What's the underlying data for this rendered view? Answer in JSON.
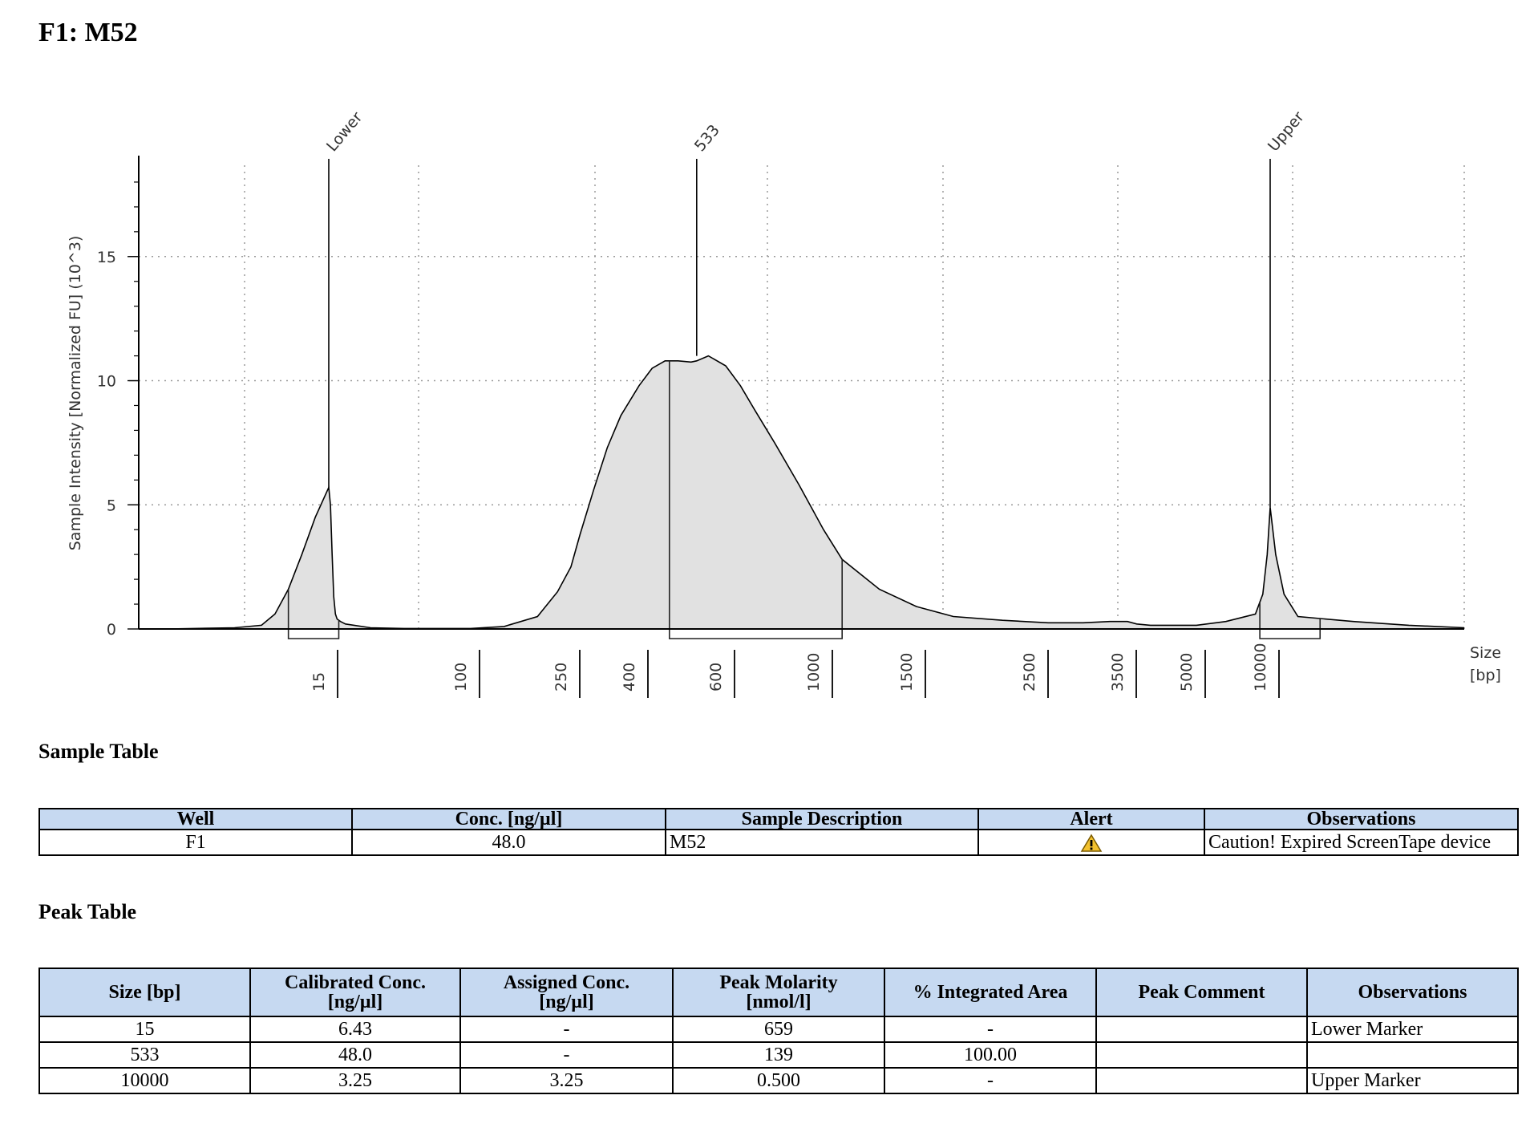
{
  "title": "F1: M52",
  "chart_data": {
    "type": "area",
    "ylabel": "Sample Intensity [Normalized FU] (10^3)",
    "xlabel_line1": "Size",
    "xlabel_line2": "[bp]",
    "ylim": [
      0,
      19
    ],
    "yticks": [
      0,
      5,
      10,
      15
    ],
    "xticks": [
      {
        "label": "15",
        "pos": 15
      },
      {
        "label": "100",
        "pos": 100
      },
      {
        "label": "250",
        "pos": 250
      },
      {
        "label": "400",
        "pos": 400
      },
      {
        "label": "600",
        "pos": 600
      },
      {
        "label": "1000",
        "pos": 1000
      },
      {
        "label": "1500",
        "pos": 1500
      },
      {
        "label": "2500",
        "pos": 2500
      },
      {
        "label": "3500",
        "pos": 3500
      },
      {
        "label": "5000",
        "pos": 5000
      },
      {
        "label": "10000",
        "pos": 10000
      }
    ],
    "trace_x": [
      1,
      3,
      5,
      8,
      10,
      11,
      12,
      13,
      14,
      15,
      16,
      17,
      18,
      19,
      20,
      22,
      25,
      40,
      60,
      100,
      150,
      200,
      230,
      250,
      270,
      300,
      330,
      360,
      400,
      430,
      460,
      490,
      520,
      533,
      560,
      600,
      660,
      720,
      800,
      900,
      1000,
      1100,
      1300,
      1500,
      1800,
      2200,
      2600,
      3000,
      3300,
      3500,
      3700,
      4000,
      5000,
      7000,
      9000,
      9500,
      9800,
      10000,
      10200,
      10500,
      11000,
      13000,
      15000,
      17000
    ],
    "trace_y": [
      0,
      0,
      0.02,
      0.05,
      0.15,
      0.6,
      1.6,
      3.0,
      4.5,
      5.7,
      5.0,
      3.0,
      1.3,
      0.6,
      0.4,
      0.3,
      0.2,
      0.05,
      0.02,
      0.02,
      0.1,
      0.5,
      1.5,
      2.5,
      3.8,
      5.6,
      7.3,
      8.6,
      9.8,
      10.5,
      10.8,
      10.8,
      10.75,
      10.8,
      11.0,
      10.6,
      9.8,
      8.8,
      7.5,
      5.8,
      4.0,
      2.8,
      1.6,
      0.9,
      0.5,
      0.35,
      0.25,
      0.25,
      0.3,
      0.3,
      0.2,
      0.15,
      0.15,
      0.3,
      0.6,
      1.4,
      3.0,
      4.9,
      3.0,
      1.4,
      0.5,
      0.3,
      0.15,
      0.05
    ],
    "peaks": [
      {
        "label": "Lower",
        "size": 15,
        "height": 5.7,
        "region": [
          12,
          21
        ]
      },
      {
        "label": "533",
        "size": 533,
        "height": 11.0,
        "region": [
          470,
          1100
        ]
      },
      {
        "label": "Upper",
        "size": 10000,
        "height": 4.9,
        "region": [
          9300,
          11800
        ]
      }
    ]
  },
  "sample_table": {
    "title": "Sample Table",
    "headers": [
      "Well",
      "Conc. [ng/µl]",
      "Sample Description",
      "Alert",
      "Observations"
    ],
    "rows": [
      {
        "well": "F1",
        "conc": "48.0",
        "description": "M52",
        "alert_icon": "warning-icon",
        "observations": "Caution! Expired ScreenTape device"
      }
    ]
  },
  "peak_table": {
    "title": "Peak Table",
    "headers": [
      {
        "line1": "Size [bp]",
        "line2": ""
      },
      {
        "line1": "Calibrated Conc.",
        "line2": "[ng/µl]"
      },
      {
        "line1": "Assigned Conc.",
        "line2": "[ng/µl]"
      },
      {
        "line1": "Peak Molarity",
        "line2": "[nmol/l]"
      },
      {
        "line1": "% Integrated Area",
        "line2": ""
      },
      {
        "line1": "Peak Comment",
        "line2": ""
      },
      {
        "line1": "Observations",
        "line2": ""
      }
    ],
    "rows": [
      [
        "15",
        "6.43",
        "-",
        "659",
        "-",
        "",
        "Lower Marker"
      ],
      [
        "533",
        "48.0",
        "-",
        "139",
        "100.00",
        "",
        ""
      ],
      [
        "10000",
        "3.25",
        "3.25",
        "0.500",
        "-",
        "",
        "Upper Marker"
      ]
    ]
  },
  "colors": {
    "header_bg": "#c6d9f1",
    "fill": "#e1e1e1",
    "line": "#000000",
    "warning": "#f2c12e"
  }
}
